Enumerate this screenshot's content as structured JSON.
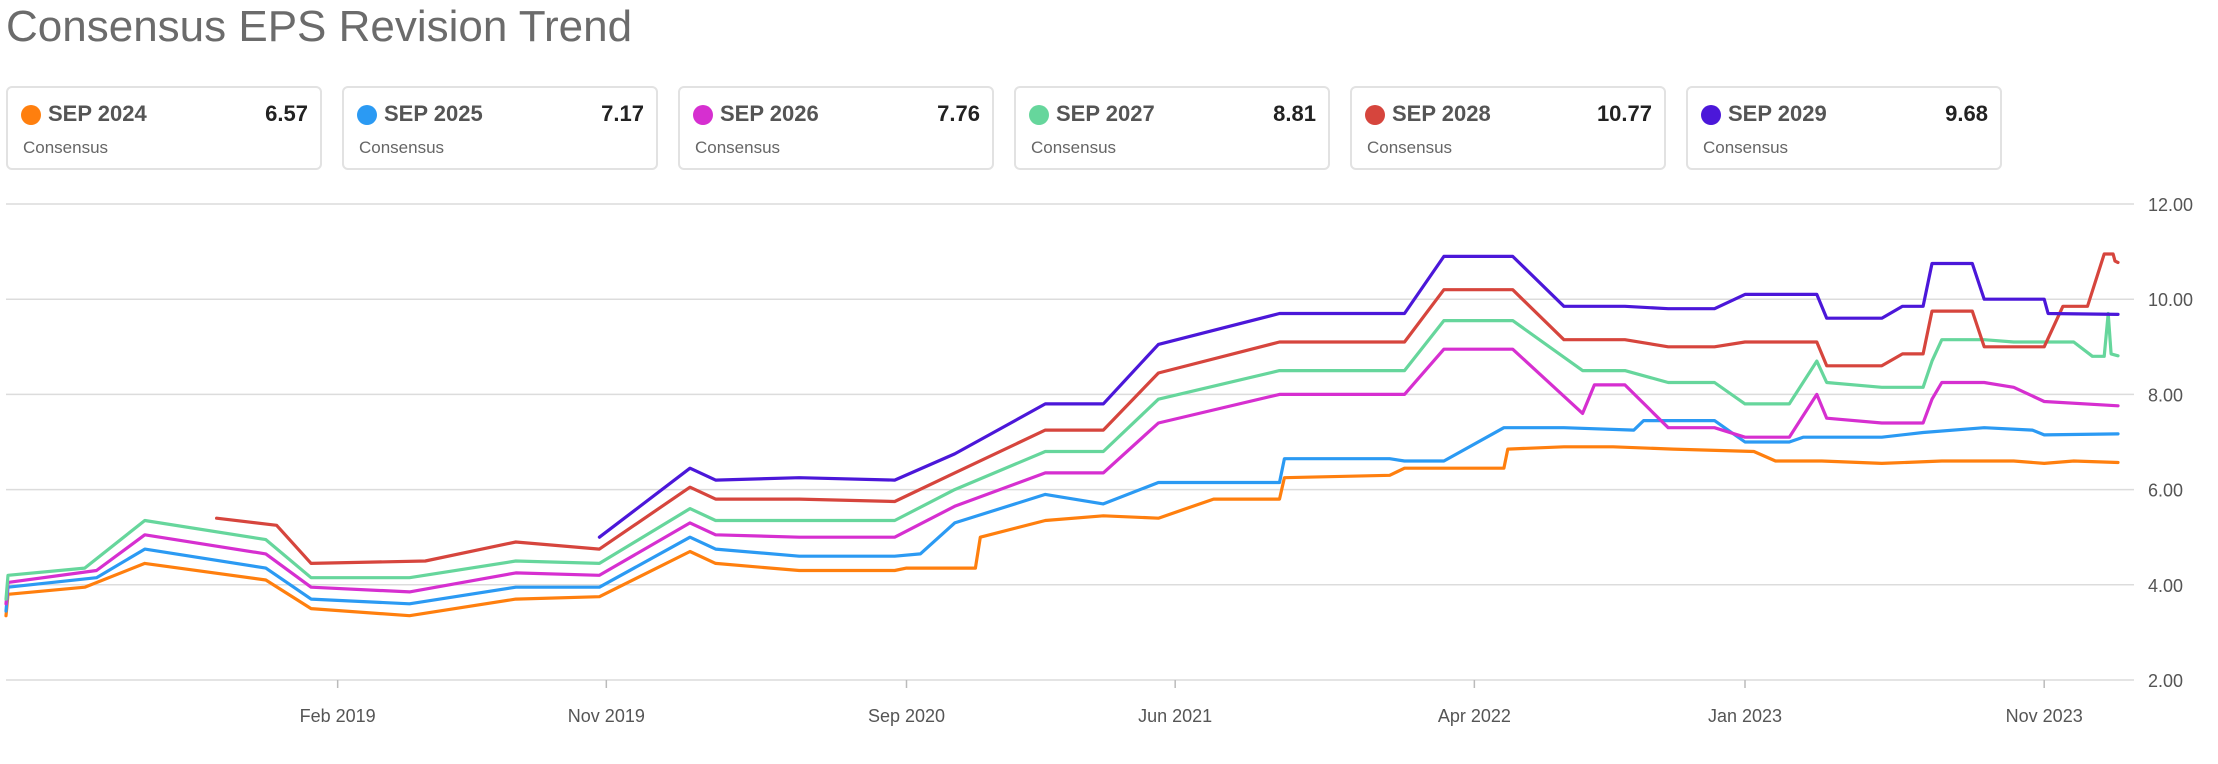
{
  "title": "Consensus EPS Revision Trend",
  "legend": [
    {
      "name": "SEP 2024",
      "value": "6.57",
      "sub": "Consensus",
      "color": "#ff7f0e"
    },
    {
      "name": "SEP 2025",
      "value": "7.17",
      "sub": "Consensus",
      "color": "#2b9af3"
    },
    {
      "name": "SEP 2026",
      "value": "7.76",
      "sub": "Consensus",
      "color": "#d62fd0"
    },
    {
      "name": "SEP 2027",
      "value": "8.81",
      "sub": "Consensus",
      "color": "#66d69c"
    },
    {
      "name": "SEP 2028",
      "value": "10.77",
      "sub": "Consensus",
      "color": "#d6453d"
    },
    {
      "name": "SEP 2029",
      "value": "9.68",
      "sub": "Consensus",
      "color": "#4b17d9"
    }
  ],
  "chart_data": {
    "type": "line",
    "title": "Consensus EPS Revision Trend",
    "xlabel": "",
    "ylabel": "",
    "xlim": [
      "2018-03-01",
      "2024-01-15"
    ],
    "ylim": [
      2,
      12
    ],
    "y_ticks": [
      "2.00",
      "4.00",
      "6.00",
      "8.00",
      "10.00",
      "12.00"
    ],
    "y_tick_values": [
      2,
      4,
      6,
      8,
      10,
      12
    ],
    "x_ticks": [
      "Feb 2019",
      "Nov 2019",
      "Sep 2020",
      "Jun 2021",
      "Apr 2022",
      "Jan 2023",
      "Nov 2023"
    ],
    "x_tick_dates": [
      "2019-02-01",
      "2019-11-01",
      "2020-09-01",
      "2021-06-01",
      "2022-04-01",
      "2023-01-01",
      "2023-11-01"
    ],
    "grid": true,
    "y_axis_position": "right",
    "series": [
      {
        "name": "SEP 2024",
        "color": "#ff7f0e",
        "points": [
          [
            "2018-03-01",
            3.35
          ],
          [
            "2018-03-03",
            3.8
          ],
          [
            "2018-05-20",
            3.95
          ],
          [
            "2018-07-20",
            4.45
          ],
          [
            "2018-11-20",
            4.1
          ],
          [
            "2019-01-05",
            3.5
          ],
          [
            "2019-04-15",
            3.35
          ],
          [
            "2019-08-01",
            3.7
          ],
          [
            "2019-10-25",
            3.75
          ],
          [
            "2020-01-25",
            4.7
          ],
          [
            "2020-02-20",
            4.45
          ],
          [
            "2020-05-15",
            4.3
          ],
          [
            "2020-08-20",
            4.3
          ],
          [
            "2020-09-01",
            4.35
          ],
          [
            "2020-11-10",
            4.35
          ],
          [
            "2020-11-15",
            5.0
          ],
          [
            "2021-01-20",
            5.35
          ],
          [
            "2021-03-20",
            5.45
          ],
          [
            "2021-05-15",
            5.4
          ],
          [
            "2021-07-10",
            5.8
          ],
          [
            "2021-09-15",
            5.8
          ],
          [
            "2021-09-20",
            6.25
          ],
          [
            "2022-01-05",
            6.3
          ],
          [
            "2022-01-20",
            6.45
          ],
          [
            "2022-05-01",
            6.45
          ],
          [
            "2022-05-05",
            6.85
          ],
          [
            "2022-07-01",
            6.9
          ],
          [
            "2022-08-20",
            6.9
          ],
          [
            "2022-10-20",
            6.85
          ],
          [
            "2023-01-10",
            6.8
          ],
          [
            "2023-02-01",
            6.6
          ],
          [
            "2023-03-20",
            6.6
          ],
          [
            "2023-05-20",
            6.55
          ],
          [
            "2023-07-20",
            6.6
          ],
          [
            "2023-10-01",
            6.6
          ],
          [
            "2023-11-01",
            6.55
          ],
          [
            "2023-12-01",
            6.6
          ],
          [
            "2024-01-15",
            6.57
          ]
        ]
      },
      {
        "name": "SEP 2025",
        "color": "#2b9af3",
        "points": [
          [
            "2018-03-01",
            3.45
          ],
          [
            "2018-03-03",
            3.95
          ],
          [
            "2018-06-01",
            4.15
          ],
          [
            "2018-07-20",
            4.75
          ],
          [
            "2018-11-20",
            4.35
          ],
          [
            "2019-01-05",
            3.7
          ],
          [
            "2019-04-15",
            3.6
          ],
          [
            "2019-08-01",
            3.95
          ],
          [
            "2019-10-25",
            3.95
          ],
          [
            "2020-01-25",
            5.0
          ],
          [
            "2020-02-20",
            4.75
          ],
          [
            "2020-05-15",
            4.6
          ],
          [
            "2020-08-20",
            4.6
          ],
          [
            "2020-09-15",
            4.65
          ],
          [
            "2020-10-20",
            5.3
          ],
          [
            "2021-01-20",
            5.9
          ],
          [
            "2021-03-20",
            5.7
          ],
          [
            "2021-05-15",
            6.15
          ],
          [
            "2021-09-15",
            6.15
          ],
          [
            "2021-09-20",
            6.65
          ],
          [
            "2022-01-05",
            6.65
          ],
          [
            "2022-01-20",
            6.6
          ],
          [
            "2022-03-01",
            6.6
          ],
          [
            "2022-05-01",
            7.3
          ],
          [
            "2022-07-01",
            7.3
          ],
          [
            "2022-09-10",
            7.25
          ],
          [
            "2022-09-20",
            7.45
          ],
          [
            "2022-12-01",
            7.45
          ],
          [
            "2023-01-01",
            7.0
          ],
          [
            "2023-02-15",
            7.0
          ],
          [
            "2023-03-01",
            7.1
          ],
          [
            "2023-05-20",
            7.1
          ],
          [
            "2023-07-01",
            7.2
          ],
          [
            "2023-09-01",
            7.3
          ],
          [
            "2023-10-20",
            7.25
          ],
          [
            "2023-11-01",
            7.15
          ],
          [
            "2024-01-15",
            7.17
          ]
        ]
      },
      {
        "name": "SEP 2026",
        "color": "#d62fd0",
        "points": [
          [
            "2018-03-01",
            3.6
          ],
          [
            "2018-03-03",
            4.05
          ],
          [
            "2018-06-01",
            4.3
          ],
          [
            "2018-07-20",
            5.05
          ],
          [
            "2018-11-20",
            4.65
          ],
          [
            "2019-01-05",
            3.95
          ],
          [
            "2019-04-15",
            3.85
          ],
          [
            "2019-08-01",
            4.25
          ],
          [
            "2019-10-25",
            4.2
          ],
          [
            "2020-01-25",
            5.3
          ],
          [
            "2020-02-20",
            5.05
          ],
          [
            "2020-05-15",
            5.0
          ],
          [
            "2020-08-20",
            5.0
          ],
          [
            "2020-10-20",
            5.65
          ],
          [
            "2021-01-20",
            6.35
          ],
          [
            "2021-03-20",
            6.35
          ],
          [
            "2021-05-15",
            7.4
          ],
          [
            "2021-09-15",
            8.0
          ],
          [
            "2022-01-05",
            8.0
          ],
          [
            "2022-01-20",
            8.0
          ],
          [
            "2022-03-01",
            8.95
          ],
          [
            "2022-05-10",
            8.95
          ],
          [
            "2022-07-20",
            7.6
          ],
          [
            "2022-08-01",
            8.2
          ],
          [
            "2022-09-01",
            8.2
          ],
          [
            "2022-10-15",
            7.3
          ],
          [
            "2022-12-01",
            7.3
          ],
          [
            "2023-01-01",
            7.1
          ],
          [
            "2023-02-15",
            7.1
          ],
          [
            "2023-03-15",
            8.0
          ],
          [
            "2023-03-25",
            7.5
          ],
          [
            "2023-05-20",
            7.4
          ],
          [
            "2023-07-01",
            7.4
          ],
          [
            "2023-07-10",
            7.9
          ],
          [
            "2023-07-20",
            8.25
          ],
          [
            "2023-09-01",
            8.25
          ],
          [
            "2023-10-01",
            8.15
          ],
          [
            "2023-11-01",
            7.85
          ],
          [
            "2024-01-15",
            7.76
          ]
        ]
      },
      {
        "name": "SEP 2027",
        "color": "#66d69c",
        "points": [
          [
            "2018-03-01",
            3.7
          ],
          [
            "2018-03-03",
            4.2
          ],
          [
            "2018-05-20",
            4.35
          ],
          [
            "2018-07-20",
            5.35
          ],
          [
            "2018-11-20",
            4.95
          ],
          [
            "2019-01-05",
            4.15
          ],
          [
            "2019-04-15",
            4.15
          ],
          [
            "2019-08-01",
            4.5
          ],
          [
            "2019-10-25",
            4.45
          ],
          [
            "2020-01-25",
            5.6
          ],
          [
            "2020-02-20",
            5.35
          ],
          [
            "2020-05-15",
            5.35
          ],
          [
            "2020-08-20",
            5.35
          ],
          [
            "2020-10-20",
            6.0
          ],
          [
            "2021-01-20",
            6.8
          ],
          [
            "2021-03-20",
            6.8
          ],
          [
            "2021-05-15",
            7.9
          ],
          [
            "2021-09-15",
            8.5
          ],
          [
            "2022-01-05",
            8.5
          ],
          [
            "2022-01-20",
            8.5
          ],
          [
            "2022-03-01",
            9.55
          ],
          [
            "2022-05-10",
            9.55
          ],
          [
            "2022-07-20",
            8.5
          ],
          [
            "2022-09-01",
            8.5
          ],
          [
            "2022-10-15",
            8.25
          ],
          [
            "2022-12-01",
            8.25
          ],
          [
            "2023-01-01",
            7.8
          ],
          [
            "2023-02-15",
            7.8
          ],
          [
            "2023-03-15",
            8.7
          ],
          [
            "2023-03-25",
            8.25
          ],
          [
            "2023-05-20",
            8.15
          ],
          [
            "2023-07-01",
            8.15
          ],
          [
            "2023-07-10",
            8.7
          ],
          [
            "2023-07-20",
            9.15
          ],
          [
            "2023-09-01",
            9.15
          ],
          [
            "2023-10-01",
            9.1
          ],
          [
            "2023-12-01",
            9.1
          ],
          [
            "2023-12-20",
            8.8
          ],
          [
            "2024-01-01",
            8.8
          ],
          [
            "2024-01-05",
            9.7
          ],
          [
            "2024-01-08",
            8.85
          ],
          [
            "2024-01-15",
            8.81
          ]
        ]
      },
      {
        "name": "SEP 2028",
        "color": "#d6453d",
        "points": [
          [
            "2018-10-01",
            5.4
          ],
          [
            "2018-12-01",
            5.25
          ],
          [
            "2019-01-05",
            4.45
          ],
          [
            "2019-05-01",
            4.5
          ],
          [
            "2019-08-01",
            4.9
          ],
          [
            "2019-10-25",
            4.75
          ],
          [
            "2020-01-25",
            6.05
          ],
          [
            "2020-02-20",
            5.8
          ],
          [
            "2020-05-15",
            5.8
          ],
          [
            "2020-08-20",
            5.75
          ],
          [
            "2020-10-20",
            6.35
          ],
          [
            "2021-01-20",
            7.25
          ],
          [
            "2021-03-20",
            7.25
          ],
          [
            "2021-05-15",
            8.45
          ],
          [
            "2021-09-15",
            9.1
          ],
          [
            "2022-01-05",
            9.1
          ],
          [
            "2022-01-20",
            9.1
          ],
          [
            "2022-03-01",
            10.2
          ],
          [
            "2022-05-10",
            10.2
          ],
          [
            "2022-07-01",
            9.15
          ],
          [
            "2022-09-01",
            9.15
          ],
          [
            "2022-10-15",
            9.0
          ],
          [
            "2022-12-01",
            9.0
          ],
          [
            "2023-01-01",
            9.1
          ],
          [
            "2023-03-15",
            9.1
          ],
          [
            "2023-03-25",
            8.6
          ],
          [
            "2023-05-20",
            8.6
          ],
          [
            "2023-06-10",
            8.85
          ],
          [
            "2023-07-01",
            8.85
          ],
          [
            "2023-07-10",
            9.75
          ],
          [
            "2023-08-20",
            9.75
          ],
          [
            "2023-09-01",
            9.0
          ],
          [
            "2023-11-01",
            9.0
          ],
          [
            "2023-11-20",
            9.85
          ],
          [
            "2023-12-15",
            9.85
          ],
          [
            "2024-01-01",
            10.95
          ],
          [
            "2024-01-10",
            10.95
          ],
          [
            "2024-01-12",
            10.8
          ],
          [
            "2024-01-15",
            10.77
          ]
        ]
      },
      {
        "name": "SEP 2029",
        "color": "#4b17d9",
        "points": [
          [
            "2019-10-25",
            5.0
          ],
          [
            "2020-01-25",
            6.45
          ],
          [
            "2020-02-20",
            6.2
          ],
          [
            "2020-05-15",
            6.25
          ],
          [
            "2020-08-20",
            6.2
          ],
          [
            "2020-10-20",
            6.75
          ],
          [
            "2021-01-20",
            7.8
          ],
          [
            "2021-03-20",
            7.8
          ],
          [
            "2021-05-15",
            9.05
          ],
          [
            "2021-09-15",
            9.7
          ],
          [
            "2022-01-05",
            9.7
          ],
          [
            "2022-01-20",
            9.7
          ],
          [
            "2022-03-01",
            10.9
          ],
          [
            "2022-05-10",
            10.9
          ],
          [
            "2022-07-01",
            9.85
          ],
          [
            "2022-09-01",
            9.85
          ],
          [
            "2022-10-15",
            9.8
          ],
          [
            "2022-12-01",
            9.8
          ],
          [
            "2023-01-01",
            10.1
          ],
          [
            "2023-03-15",
            10.1
          ],
          [
            "2023-03-25",
            9.6
          ],
          [
            "2023-05-20",
            9.6
          ],
          [
            "2023-06-10",
            9.85
          ],
          [
            "2023-07-01",
            9.85
          ],
          [
            "2023-07-10",
            10.75
          ],
          [
            "2023-08-20",
            10.75
          ],
          [
            "2023-09-01",
            10.0
          ],
          [
            "2023-11-01",
            10.0
          ],
          [
            "2023-11-05",
            9.7
          ],
          [
            "2024-01-15",
            9.68
          ]
        ]
      }
    ]
  }
}
